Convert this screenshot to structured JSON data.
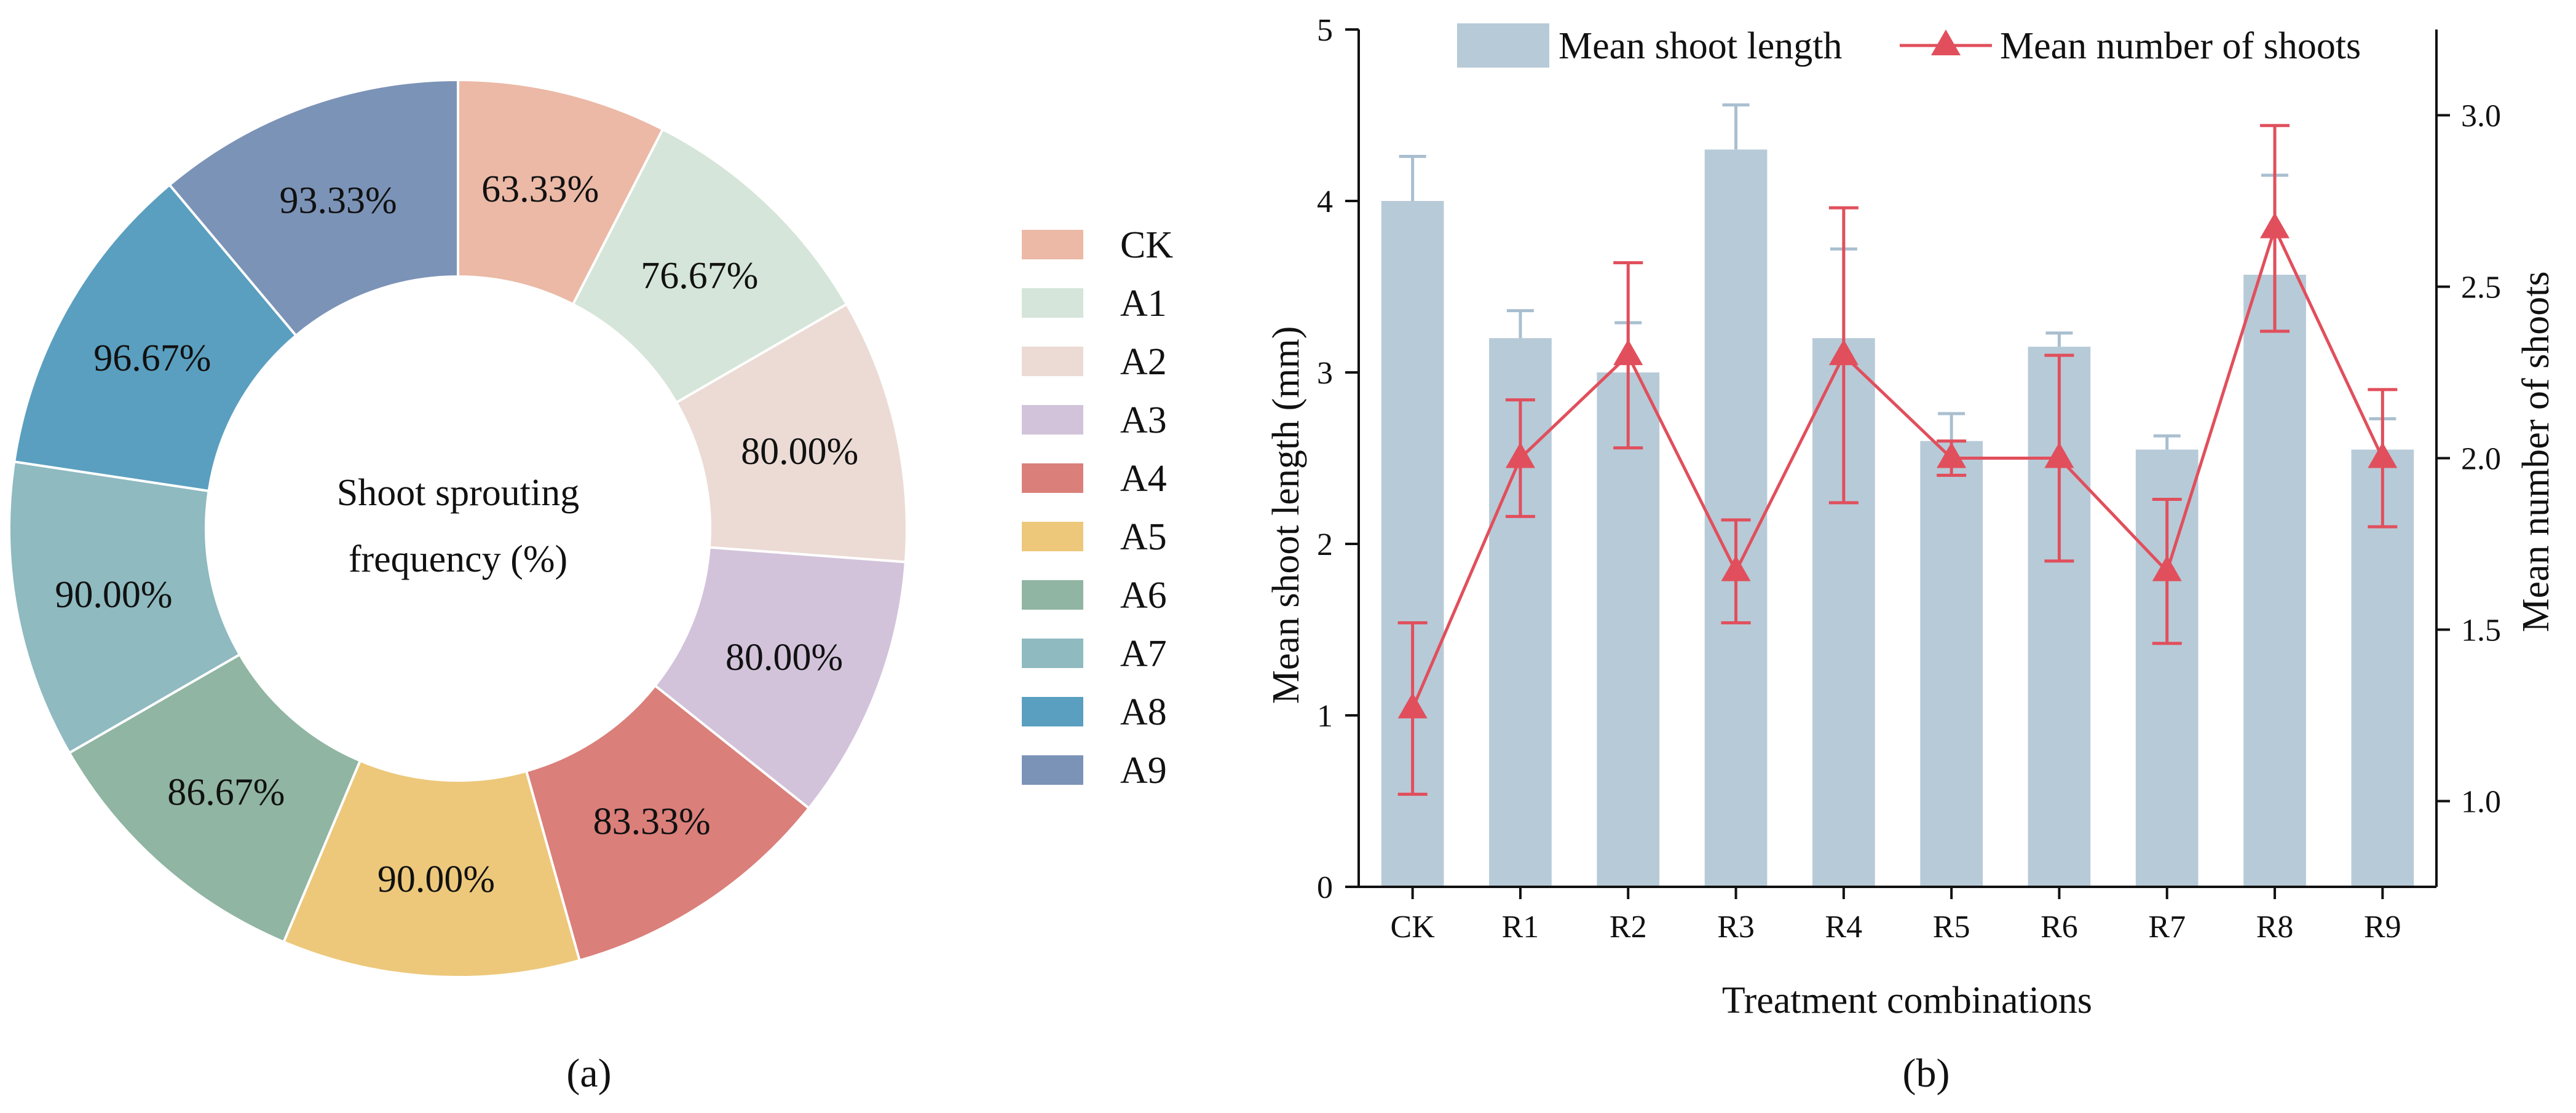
{
  "chart_data": [
    {
      "type": "pie",
      "variant": "donut",
      "center_label": [
        "Shoot sprouting",
        "frequency (%)"
      ],
      "categories": [
        "CK",
        "A1",
        "A2",
        "A3",
        "A4",
        "A5",
        "A6",
        "A7",
        "A8",
        "A9"
      ],
      "values": [
        63.33,
        76.67,
        80.0,
        80.0,
        83.33,
        90.0,
        86.67,
        90.0,
        96.67,
        93.33
      ],
      "data_labels": [
        "63.33%",
        "76.67%",
        "80.00%",
        "80.00%",
        "83.33%",
        "90.00%",
        "86.67%",
        "90.00%",
        "96.67%",
        "93.33%"
      ],
      "colors": [
        "#EBB9A6",
        "#D5E5D9",
        "#EBDBD4",
        "#D2C3DA",
        "#DA7F7A",
        "#EDC87B",
        "#90B5A2",
        "#8EBAC0",
        "#5A9FBF",
        "#7B93B7"
      ],
      "legend_position": "right",
      "caption": "(a)"
    },
    {
      "type": "bar+line",
      "categories": [
        "CK",
        "R1",
        "R2",
        "R3",
        "R4",
        "R5",
        "R6",
        "R7",
        "R8",
        "R9"
      ],
      "series": [
        {
          "name": "Mean shoot length",
          "kind": "bar",
          "axis": "left",
          "values": [
            4.0,
            3.2,
            3.0,
            4.3,
            3.2,
            2.6,
            3.15,
            2.55,
            3.57,
            2.55
          ],
          "errors": [
            0.26,
            0.16,
            0.29,
            0.26,
            0.52,
            0.16,
            0.08,
            0.08,
            0.58,
            0.18
          ],
          "color": "#B7CAD8"
        },
        {
          "name": "Mean number of shoots",
          "kind": "line",
          "axis": "right",
          "marker": "triangle",
          "values": [
            1.27,
            2.0,
            2.3,
            1.67,
            2.3,
            2.0,
            2.0,
            1.67,
            2.67,
            2.0
          ],
          "errors": [
            0.25,
            0.17,
            0.27,
            0.15,
            0.43,
            0.05,
            0.3,
            0.21,
            0.3,
            0.2
          ],
          "color": "#E14F5C"
        }
      ],
      "xlabel": "Treatment combinations",
      "ylabel": "Mean shoot length (mm)",
      "y2label": "Mean number of shoots",
      "ylim": [
        0,
        5
      ],
      "y2lim": [
        0.75,
        3.25
      ],
      "yticks": [
        "0",
        "1",
        "2",
        "3",
        "4",
        "5"
      ],
      "y2ticks": [
        "1.0",
        "1.5",
        "2.0",
        "2.5",
        "3.0"
      ],
      "legend_position": "top",
      "caption": "(b)"
    }
  ]
}
